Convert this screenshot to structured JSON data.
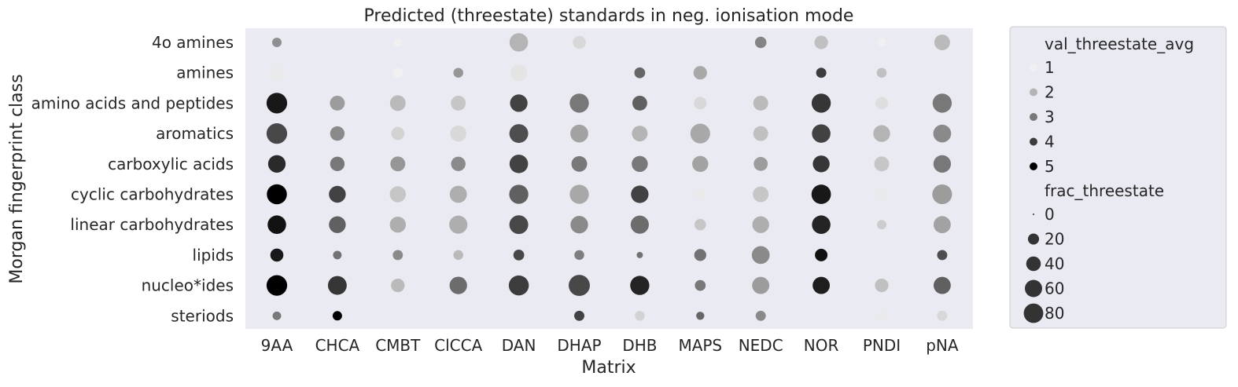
{
  "chart_data": {
    "type": "scatter",
    "title": "Predicted (threestate) standards in neg. ionisation mode",
    "xlabel": "Matrix",
    "ylabel": "Morgan fingerprint class",
    "x_categories": [
      "9AA",
      "CHCA",
      "CMBT",
      "ClCCA",
      "DAN",
      "DHAP",
      "DHB",
      "MAPS",
      "NEDC",
      "NOR",
      "PNDI",
      "pNA"
    ],
    "y_categories": [
      "4o amines",
      "amines",
      "amino acids and peptides",
      "aromatics",
      "carboxylic acids",
      "cyclic carbohydrates",
      "linear carbohydrates",
      "lipids",
      "nucleo*ides",
      "steriods"
    ],
    "grid": false,
    "legend_placement": "outside right",
    "hue": {
      "name": "val_threestate_avg",
      "levels": [
        1,
        2,
        3,
        4,
        5
      ],
      "colors": {
        "min": "#f0f0f0",
        "max": "#000000",
        "min_value": 1,
        "max_value": 5
      }
    },
    "size": {
      "name": "frac_threestate",
      "levels": [
        0,
        20,
        40,
        60,
        80
      ]
    },
    "points": [
      {
        "x": "9AA",
        "y": "4o amines",
        "val": 2.6,
        "frac": 8
      },
      {
        "x": "9AA",
        "y": "amines",
        "val": 1.1,
        "frac": 22
      },
      {
        "x": "9AA",
        "y": "amino acids and peptides",
        "val": 4.6,
        "frac": 62
      },
      {
        "x": "9AA",
        "y": "aromatics",
        "val": 3.8,
        "frac": 62
      },
      {
        "x": "9AA",
        "y": "carboxylic acids",
        "val": 4.3,
        "frac": 42
      },
      {
        "x": "9AA",
        "y": "cyclic carbohydrates",
        "val": 5.0,
        "frac": 58
      },
      {
        "x": "9AA",
        "y": "linear carbohydrates",
        "val": 4.7,
        "frac": 48
      },
      {
        "x": "9AA",
        "y": "lipids",
        "val": 4.6,
        "frac": 20
      },
      {
        "x": "9AA",
        "y": "nucleo*ides",
        "val": 5.2,
        "frac": 62
      },
      {
        "x": "9AA",
        "y": "steriods",
        "val": 3.0,
        "frac": 6
      },
      {
        "x": "CHCA",
        "y": "amino acids and peptides",
        "val": 2.4,
        "frac": 28
      },
      {
        "x": "CHCA",
        "y": "aromatics",
        "val": 2.7,
        "frac": 26
      },
      {
        "x": "CHCA",
        "y": "carboxylic acids",
        "val": 3.0,
        "frac": 26
      },
      {
        "x": "CHCA",
        "y": "cyclic carbohydrates",
        "val": 3.9,
        "frac": 38
      },
      {
        "x": "CHCA",
        "y": "linear carbohydrates",
        "val": 3.4,
        "frac": 38
      },
      {
        "x": "CHCA",
        "y": "lipids",
        "val": 3.1,
        "frac": 6
      },
      {
        "x": "CHCA",
        "y": "nucleo*ides",
        "val": 4.1,
        "frac": 50
      },
      {
        "x": "CHCA",
        "y": "steriods",
        "val": 5.0,
        "frac": 8
      },
      {
        "x": "CMBT",
        "y": "4o amines",
        "val": 1.0,
        "frac": 5
      },
      {
        "x": "CMBT",
        "y": "amines",
        "val": 1.0,
        "frac": 10
      },
      {
        "x": "CMBT",
        "y": "amino acids and peptides",
        "val": 1.9,
        "frac": 32
      },
      {
        "x": "CMBT",
        "y": "aromatics",
        "val": 1.5,
        "frac": 20
      },
      {
        "x": "CMBT",
        "y": "carboxylic acids",
        "val": 2.5,
        "frac": 28
      },
      {
        "x": "CMBT",
        "y": "cyclic carbohydrates",
        "val": 1.7,
        "frac": 34
      },
      {
        "x": "CMBT",
        "y": "linear carbohydrates",
        "val": 2.1,
        "frac": 34
      },
      {
        "x": "CMBT",
        "y": "lipids",
        "val": 2.7,
        "frac": 10
      },
      {
        "x": "CMBT",
        "y": "nucleo*ides",
        "val": 1.9,
        "frac": 22
      },
      {
        "x": "ClCCA",
        "y": "amines",
        "val": 2.5,
        "frac": 9
      },
      {
        "x": "ClCCA",
        "y": "amino acids and peptides",
        "val": 1.7,
        "frac": 28
      },
      {
        "x": "ClCCA",
        "y": "aromatics",
        "val": 1.4,
        "frac": 34
      },
      {
        "x": "ClCCA",
        "y": "carboxylic acids",
        "val": 2.7,
        "frac": 26
      },
      {
        "x": "ClCCA",
        "y": "cyclic carbohydrates",
        "val": 2.1,
        "frac": 40
      },
      {
        "x": "ClCCA",
        "y": "linear carbohydrates",
        "val": 2.1,
        "frac": 46
      },
      {
        "x": "ClCCA",
        "y": "lipids",
        "val": 1.9,
        "frac": 9
      },
      {
        "x": "ClCCA",
        "y": "nucleo*ides",
        "val": 3.2,
        "frac": 42
      },
      {
        "x": "DAN",
        "y": "4o amines",
        "val": 2.0,
        "frac": 48
      },
      {
        "x": "DAN",
        "y": "amines",
        "val": 1.2,
        "frac": 38
      },
      {
        "x": "DAN",
        "y": "amino acids and peptides",
        "val": 3.9,
        "frac": 42
      },
      {
        "x": "DAN",
        "y": "aromatics",
        "val": 3.7,
        "frac": 50
      },
      {
        "x": "DAN",
        "y": "carboxylic acids",
        "val": 3.9,
        "frac": 48
      },
      {
        "x": "DAN",
        "y": "cyclic carbohydrates",
        "val": 3.4,
        "frac": 52
      },
      {
        "x": "DAN",
        "y": "linear carbohydrates",
        "val": 3.8,
        "frac": 50
      },
      {
        "x": "DAN",
        "y": "lipids",
        "val": 3.8,
        "frac": 12
      },
      {
        "x": "DAN",
        "y": "nucleo*ides",
        "val": 4.0,
        "frac": 58
      },
      {
        "x": "DHAP",
        "y": "4o amines",
        "val": 1.4,
        "frac": 20
      },
      {
        "x": "DHAP",
        "y": "amino acids and peptides",
        "val": 3.0,
        "frac": 52
      },
      {
        "x": "DHAP",
        "y": "aromatics",
        "val": 2.3,
        "frac": 44
      },
      {
        "x": "DHAP",
        "y": "carboxylic acids",
        "val": 3.0,
        "frac": 32
      },
      {
        "x": "DHAP",
        "y": "cyclic carbohydrates",
        "val": 2.2,
        "frac": 52
      },
      {
        "x": "DHAP",
        "y": "linear carbohydrates",
        "val": 2.7,
        "frac": 42
      },
      {
        "x": "DHAP",
        "y": "lipids",
        "val": 2.9,
        "frac": 9
      },
      {
        "x": "DHAP",
        "y": "nucleo*ides",
        "val": 3.8,
        "frac": 66
      },
      {
        "x": "DHAP",
        "y": "steriods",
        "val": 3.9,
        "frac": 10
      },
      {
        "x": "DHB",
        "y": "amines",
        "val": 3.3,
        "frac": 12
      },
      {
        "x": "DHB",
        "y": "amino acids and peptides",
        "val": 3.4,
        "frac": 28
      },
      {
        "x": "DHB",
        "y": "aromatics",
        "val": 2.0,
        "frac": 32
      },
      {
        "x": "DHB",
        "y": "carboxylic acids",
        "val": 3.0,
        "frac": 34
      },
      {
        "x": "DHB",
        "y": "cyclic carbohydrates",
        "val": 3.9,
        "frac": 42
      },
      {
        "x": "DHB",
        "y": "linear carbohydrates",
        "val": 3.2,
        "frac": 46
      },
      {
        "x": "DHB",
        "y": "lipids",
        "val": 3.1,
        "frac": 2
      },
      {
        "x": "DHB",
        "y": "nucleo*ides",
        "val": 4.4,
        "frac": 52
      },
      {
        "x": "DHB",
        "y": "steriods",
        "val": 1.5,
        "frac": 9
      },
      {
        "x": "MAPS",
        "y": "amines",
        "val": 2.2,
        "frac": 22
      },
      {
        "x": "MAPS",
        "y": "amino acids and peptides",
        "val": 1.4,
        "frac": 18
      },
      {
        "x": "MAPS",
        "y": "aromatics",
        "val": 2.2,
        "frac": 56
      },
      {
        "x": "MAPS",
        "y": "carboxylic acids",
        "val": 2.3,
        "frac": 34
      },
      {
        "x": "MAPS",
        "y": "cyclic carbohydrates",
        "val": 1.1,
        "frac": 10
      },
      {
        "x": "MAPS",
        "y": "linear carbohydrates",
        "val": 1.7,
        "frac": 14
      },
      {
        "x": "MAPS",
        "y": "lipids",
        "val": 3.1,
        "frac": 16
      },
      {
        "x": "MAPS",
        "y": "nucleo*ides",
        "val": 3.0,
        "frac": 12
      },
      {
        "x": "MAPS",
        "y": "steriods",
        "val": 3.3,
        "frac": 5
      },
      {
        "x": "NEDC",
        "y": "4o amines",
        "val": 2.8,
        "frac": 14
      },
      {
        "x": "NEDC",
        "y": "amino acids and peptides",
        "val": 1.9,
        "frac": 28
      },
      {
        "x": "NEDC",
        "y": "aromatics",
        "val": 1.8,
        "frac": 28
      },
      {
        "x": "NEDC",
        "y": "carboxylic acids",
        "val": 2.4,
        "frac": 24
      },
      {
        "x": "NEDC",
        "y": "cyclic carbohydrates",
        "val": 1.7,
        "frac": 32
      },
      {
        "x": "NEDC",
        "y": "linear carbohydrates",
        "val": 2.1,
        "frac": 38
      },
      {
        "x": "NEDC",
        "y": "lipids",
        "val": 2.7,
        "frac": 44
      },
      {
        "x": "NEDC",
        "y": "nucleo*ides",
        "val": 2.4,
        "frac": 40
      },
      {
        "x": "NEDC",
        "y": "steriods",
        "val": 2.7,
        "frac": 10
      },
      {
        "x": "NOR",
        "y": "4o amines",
        "val": 1.8,
        "frac": 22
      },
      {
        "x": "NOR",
        "y": "amines",
        "val": 4.0,
        "frac": 10
      },
      {
        "x": "NOR",
        "y": "amino acids and peptides",
        "val": 4.1,
        "frac": 52
      },
      {
        "x": "NOR",
        "y": "aromatics",
        "val": 3.9,
        "frac": 48
      },
      {
        "x": "NOR",
        "y": "carboxylic acids",
        "val": 4.1,
        "frac": 38
      },
      {
        "x": "NOR",
        "y": "cyclic carbohydrates",
        "val": 4.6,
        "frac": 54
      },
      {
        "x": "NOR",
        "y": "linear carbohydrates",
        "val": 4.4,
        "frac": 48
      },
      {
        "x": "NOR",
        "y": "lipids",
        "val": 4.7,
        "frac": 18
      },
      {
        "x": "NOR",
        "y": "nucleo*ides",
        "val": 4.5,
        "frac": 40
      },
      {
        "x": "PNDI",
        "y": "4o amines",
        "val": 1.0,
        "frac": 6
      },
      {
        "x": "PNDI",
        "y": "amines",
        "val": 1.8,
        "frac": 9
      },
      {
        "x": "PNDI",
        "y": "amino acids and peptides",
        "val": 1.3,
        "frac": 18
      },
      {
        "x": "PNDI",
        "y": "aromatics",
        "val": 2.0,
        "frac": 38
      },
      {
        "x": "PNDI",
        "y": "carboxylic acids",
        "val": 1.7,
        "frac": 28
      },
      {
        "x": "PNDI",
        "y": "cyclic carbohydrates",
        "val": 1.1,
        "frac": 10
      },
      {
        "x": "PNDI",
        "y": "linear carbohydrates",
        "val": 1.6,
        "frac": 8
      },
      {
        "x": "PNDI",
        "y": "nucleo*ides",
        "val": 1.8,
        "frac": 22
      },
      {
        "x": "PNDI",
        "y": "steriods",
        "val": 1.1,
        "frac": 8
      },
      {
        "x": "pNA",
        "y": "4o amines",
        "val": 1.9,
        "frac": 32
      },
      {
        "x": "pNA",
        "y": "amino acids and peptides",
        "val": 3.0,
        "frac": 52
      },
      {
        "x": "pNA",
        "y": "aromatics",
        "val": 2.7,
        "frac": 44
      },
      {
        "x": "pNA",
        "y": "carboxylic acids",
        "val": 3.0,
        "frac": 42
      },
      {
        "x": "pNA",
        "y": "cyclic carbohydrates",
        "val": 2.4,
        "frac": 56
      },
      {
        "x": "pNA",
        "y": "linear carbohydrates",
        "val": 2.3,
        "frac": 40
      },
      {
        "x": "pNA",
        "y": "lipids",
        "val": 3.7,
        "frac": 10
      },
      {
        "x": "pNA",
        "y": "nucleo*ides",
        "val": 3.4,
        "frac": 40
      },
      {
        "x": "pNA",
        "y": "steriods",
        "val": 1.4,
        "frac": 10
      }
    ]
  }
}
